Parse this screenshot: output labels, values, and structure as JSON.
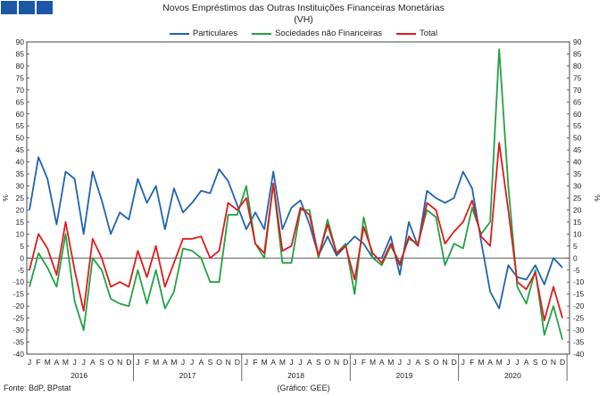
{
  "header": {
    "title_line1": "Novos Empréstimos das Outras Instituições  Financeiras Monetárias",
    "title_line2": "(VH)"
  },
  "footer": {
    "source": "Fonte: BdP, BPstat",
    "credit": "(Gráfico: GEE)"
  },
  "colors": {
    "particulares": "#1f64b0",
    "sociedades": "#22a246",
    "total": "#e01b1b"
  },
  "chart_data": {
    "type": "line",
    "title": "Novos Empréstimos das Outras Instituições  Financeiras Monetárias (VH)",
    "ylabel_left": "%",
    "ylabel_right": "%",
    "ylim": [
      -40,
      90
    ],
    "yticks": [
      -40,
      -35,
      -30,
      -25,
      -20,
      -15,
      -10,
      -5,
      0,
      5,
      10,
      15,
      20,
      25,
      30,
      35,
      40,
      45,
      50,
      55,
      60,
      65,
      70,
      75,
      80,
      85,
      90
    ],
    "grid": false,
    "legend_position": "top",
    "month_labels": [
      "J",
      "F",
      "M",
      "A",
      "M",
      "J",
      "J",
      "A",
      "S",
      "O",
      "N",
      "D"
    ],
    "years": [
      "2016",
      "2017",
      "2018",
      "2019",
      "2020"
    ],
    "series": [
      {
        "name": "Particulares",
        "values": [
          20,
          42,
          33,
          14,
          36,
          33,
          10,
          36,
          24,
          10,
          19,
          16,
          33,
          23,
          30,
          12,
          29,
          19,
          23,
          28,
          27,
          37,
          32,
          22,
          12,
          19,
          12,
          36,
          12,
          21,
          24,
          14,
          1,
          9,
          1,
          5,
          9,
          6,
          0,
          0,
          9,
          -7,
          15,
          5,
          28,
          25,
          23,
          25,
          36,
          29,
          7,
          -14,
          -21,
          -3,
          -8,
          -9,
          -3,
          -11,
          0,
          -4
        ]
      },
      {
        "name": "Sociedades não Financeiras",
        "values": [
          -12,
          2,
          -4,
          -12,
          10,
          -18,
          -30,
          0,
          -5,
          -17,
          -19,
          -20,
          -5,
          -19,
          -5,
          -21,
          -14,
          4,
          3,
          0,
          -10,
          -10,
          18,
          18,
          30,
          6,
          0,
          31,
          -2,
          -2,
          20,
          20,
          0,
          16,
          2,
          6,
          -15,
          17,
          0,
          -3,
          5,
          -2,
          8,
          6,
          20,
          17,
          -3,
          6,
          4,
          21,
          10,
          15,
          87,
          30,
          -12,
          -19,
          -5,
          -32,
          -20,
          -34
        ]
      },
      {
        "name": "Total",
        "values": [
          -5,
          10,
          4,
          -7,
          15,
          -5,
          -22,
          8,
          0,
          -12,
          -10,
          -12,
          3,
          -8,
          5,
          -12,
          -2,
          8,
          8,
          9,
          0,
          3,
          23,
          20,
          25,
          6,
          2,
          31,
          3,
          5,
          21,
          18,
          1,
          14,
          2,
          5,
          -9,
          13,
          2,
          -2,
          6,
          -3,
          9,
          5,
          23,
          20,
          6,
          11,
          15,
          24,
          9,
          5,
          48,
          20,
          -10,
          -13,
          -6,
          -26,
          -12,
          -25
        ]
      }
    ]
  }
}
